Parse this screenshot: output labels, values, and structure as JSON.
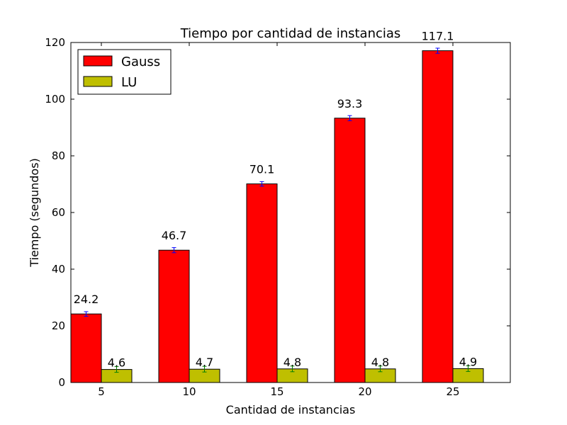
{
  "chart_data": {
    "type": "bar",
    "title": "Tiempo por cantidad de instancias",
    "xlabel": "Cantidad de instancias",
    "ylabel": "Tiempo (segundos)",
    "categories": [
      "5",
      "10",
      "15",
      "20",
      "25"
    ],
    "ylim": [
      0,
      120
    ],
    "yticks": [
      0,
      20,
      40,
      60,
      80,
      100,
      120
    ],
    "grid": false,
    "legend_position": "top-left",
    "series": [
      {
        "name": "Gauss",
        "color": "#ff0000",
        "error_color": "#0000ff",
        "values": [
          24.2,
          46.7,
          70.1,
          93.3,
          117.1
        ],
        "errors": [
          0.8,
          0.9,
          0.8,
          0.9,
          0.9
        ],
        "labels": [
          "24.2",
          "46.7",
          "70.1",
          "93.3",
          "117.1"
        ]
      },
      {
        "name": "LU",
        "color": "#bfbf00",
        "error_color": "#008000",
        "values": [
          4.6,
          4.7,
          4.8,
          4.8,
          4.9
        ],
        "errors": [
          1.0,
          1.0,
          1.0,
          1.0,
          1.0
        ],
        "labels": [
          "4.6",
          "4.7",
          "4.8",
          "4.8",
          "4.9"
        ]
      }
    ]
  }
}
